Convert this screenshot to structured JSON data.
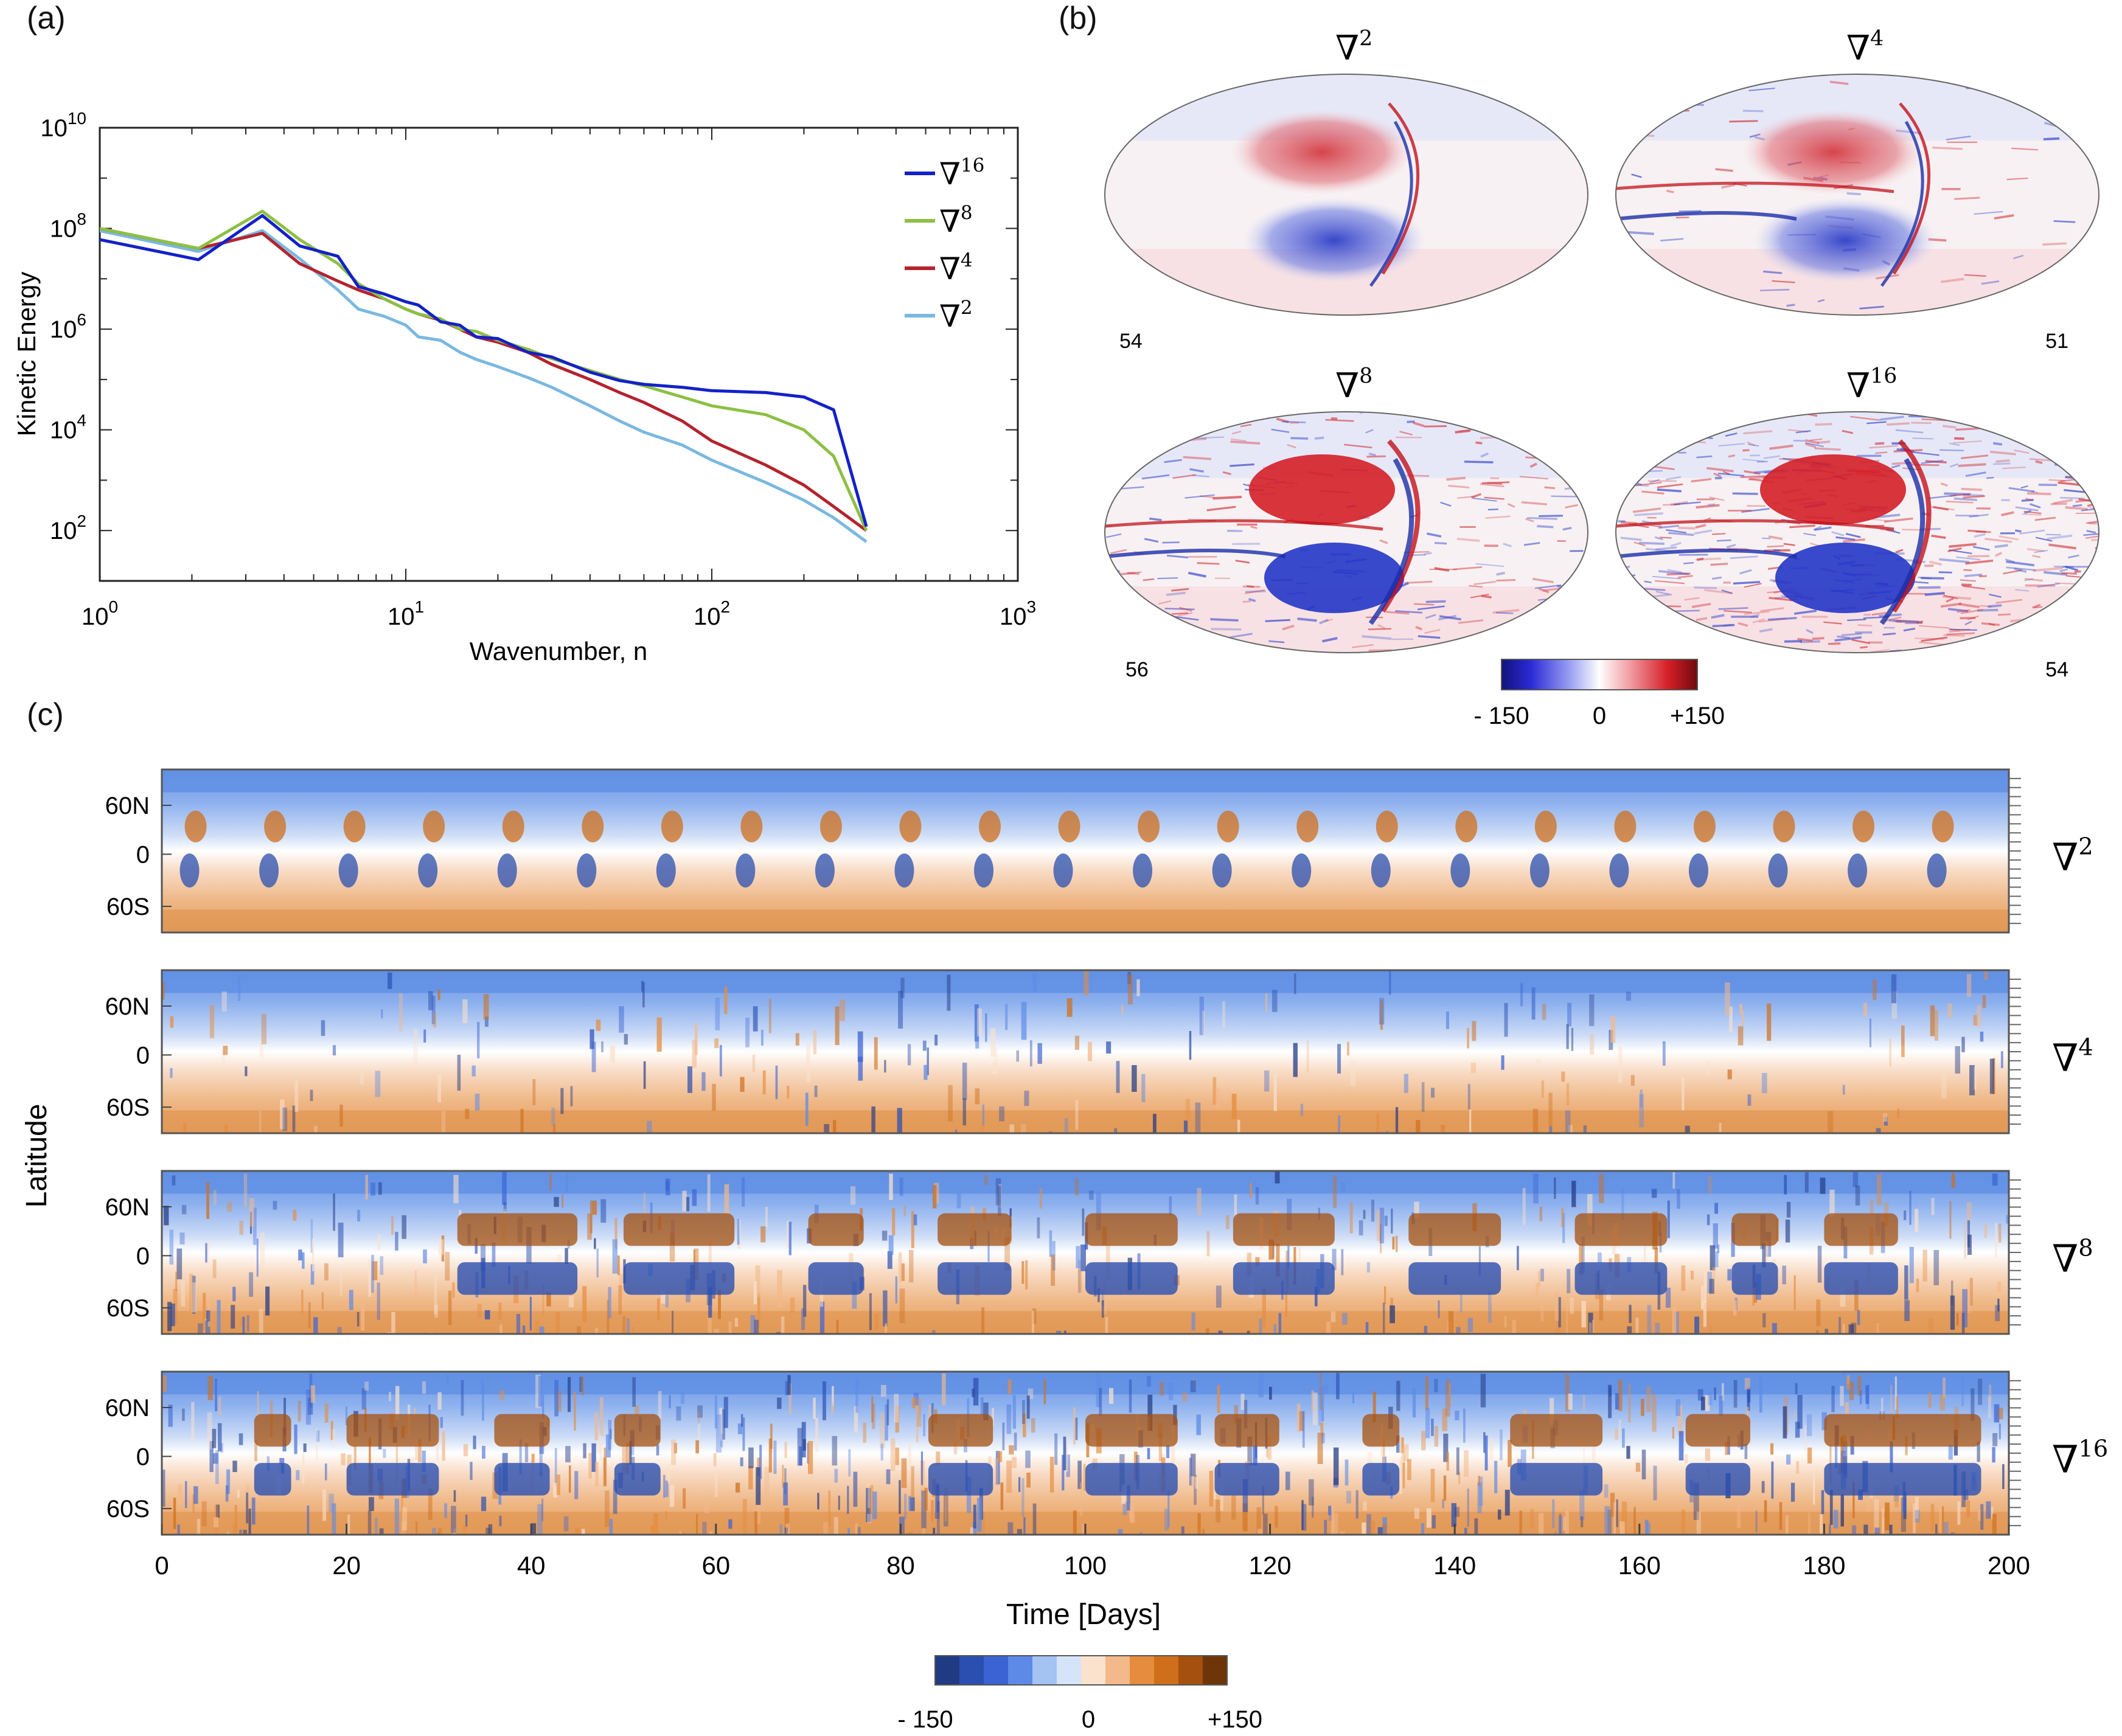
{
  "panel_labels": {
    "a": "(a)",
    "b": "(b)",
    "c": "(c)"
  },
  "colors": {
    "n16": "#1321c9",
    "n8": "#8cc044",
    "n4": "#b4232d",
    "n2": "#7ab8e0",
    "blue_strong": "#1a2ea8",
    "red_strong": "#c3121b",
    "div_neg": [
      "#213a84",
      "#2a4fb0",
      "#3b63d3",
      "#5d8ae6",
      "#a4c2f2",
      "#d6e4f9"
    ],
    "div_pos": [
      "#fae2cd",
      "#f3b98a",
      "#e58c3e",
      "#cf6f1c",
      "#a5500e",
      "#6e3508"
    ]
  },
  "chart_data": [
    {
      "type": "line",
      "title": "",
      "xlabel": "Wavenumber, n",
      "ylabel": "Kinetic Energy",
      "xscale": "log",
      "yscale": "log",
      "xlim": [
        1,
        1000
      ],
      "ylim": [
        10,
        10000000000
      ],
      "xticks": [
        {
          "base": "10",
          "exp": "0",
          "value": 1
        },
        {
          "base": "10",
          "exp": "1",
          "value": 10
        },
        {
          "base": "10",
          "exp": "2",
          "value": 100
        },
        {
          "base": "10",
          "exp": "3",
          "value": 1000
        }
      ],
      "yticks": [
        {
          "base": "10",
          "exp": "2",
          "value": 100
        },
        {
          "base": "10",
          "exp": "4",
          "value": 10000
        },
        {
          "base": "10",
          "exp": "6",
          "value": 1000000
        },
        {
          "base": "10",
          "exp": "8",
          "value": 100000000
        },
        {
          "base": "10",
          "exp": "10",
          "value": 10000000000
        }
      ],
      "legend": {
        "position": "top-right"
      },
      "series": [
        {
          "name": "∇16",
          "op": "∇",
          "exp": "16",
          "color": "#1321c9",
          "x": [
            1,
            2.1,
            3.4,
            4.5,
            6,
            7,
            8.5,
            10,
            11,
            13,
            15,
            17,
            20,
            25,
            30,
            40,
            50,
            60,
            80,
            100,
            150,
            200,
            250,
            320
          ],
          "y": [
            60000000,
            24000000,
            180000000,
            45000000,
            28000000,
            7000000,
            5000000,
            3500000,
            3000000,
            1400000,
            1200000,
            700000,
            650000,
            350000,
            280000,
            140000,
            95000,
            80000,
            70000,
            60000,
            55000,
            45000,
            25000,
            120
          ]
        },
        {
          "name": "∇8",
          "op": "∇",
          "exp": "8",
          "color": "#8cc044",
          "x": [
            1,
            2.1,
            3.4,
            4.5,
            6,
            7,
            8.5,
            10,
            11,
            13,
            15,
            17,
            20,
            25,
            30,
            40,
            50,
            60,
            80,
            100,
            150,
            200,
            250,
            320
          ],
          "y": [
            100000000,
            40000000,
            220000000,
            60000000,
            20000000,
            8000000,
            4000000,
            2500000,
            2000000,
            1600000,
            1000000,
            900000,
            600000,
            400000,
            260000,
            150000,
            100000,
            75000,
            45000,
            30000,
            20000,
            10000,
            3000,
            100
          ]
        },
        {
          "name": "∇4",
          "op": "∇",
          "exp": "4",
          "color": "#b4232d",
          "x": [
            1,
            2.1,
            3.4,
            4.5,
            6,
            7,
            8.5,
            10,
            11,
            13,
            15,
            17,
            20,
            25,
            30,
            40,
            50,
            60,
            80,
            100,
            150,
            200,
            250,
            320
          ],
          "y": [
            100000000,
            40000000,
            80000000,
            20000000,
            9000000,
            6000000,
            4000000,
            2500000,
            2000000,
            1500000,
            1000000,
            700000,
            550000,
            350000,
            200000,
            100000,
            55000,
            35000,
            15000,
            6000,
            2000,
            800,
            300,
            100
          ]
        },
        {
          "name": "∇2",
          "op": "∇",
          "exp": "2",
          "color": "#7ab8e0",
          "x": [
            1,
            2.1,
            3.4,
            4.5,
            6,
            7,
            8.5,
            10,
            11,
            13,
            15,
            17,
            20,
            25,
            30,
            40,
            50,
            60,
            80,
            100,
            150,
            200,
            250,
            320
          ],
          "y": [
            90000000,
            35000000,
            90000000,
            25000000,
            6000000,
            2500000,
            1800000,
            1200000,
            700000,
            600000,
            350000,
            250000,
            180000,
            110000,
            70000,
            30000,
            15000,
            9000,
            5000,
            2500,
            900,
            400,
            180,
            60
          ]
        }
      ]
    },
    {
      "type": "heatmap",
      "description_free": true,
      "maps": [
        {
          "op": "∇",
          "exp": "2",
          "number": "54"
        },
        {
          "op": "∇",
          "exp": "4",
          "number": "51"
        },
        {
          "op": "∇",
          "exp": "8",
          "number": "56"
        },
        {
          "op": "∇",
          "exp": "16",
          "number": "54"
        }
      ],
      "colorbar": {
        "min_label": "- 150",
        "mid_label": "0",
        "max_label": "+150",
        "range": [
          -150,
          150
        ]
      }
    },
    {
      "type": "heatmap",
      "xlabel": "Time [Days]",
      "ylabel": "Latitude",
      "xlim": [
        0,
        200
      ],
      "xticks": [
        "0",
        "20",
        "40",
        "60",
        "80",
        "100",
        "120",
        "140",
        "160",
        "180",
        "200"
      ],
      "yticks": [
        "60N",
        "0",
        "60S"
      ],
      "rows": [
        {
          "op": "∇",
          "exp": "2"
        },
        {
          "op": "∇",
          "exp": "4"
        },
        {
          "op": "∇",
          "exp": "8"
        },
        {
          "op": "∇",
          "exp": "16"
        }
      ],
      "colorbar": {
        "min_label": "- 150",
        "mid_label": "0",
        "max_label": "+150",
        "range": [
          -150,
          150
        ],
        "levels": 12
      }
    }
  ]
}
